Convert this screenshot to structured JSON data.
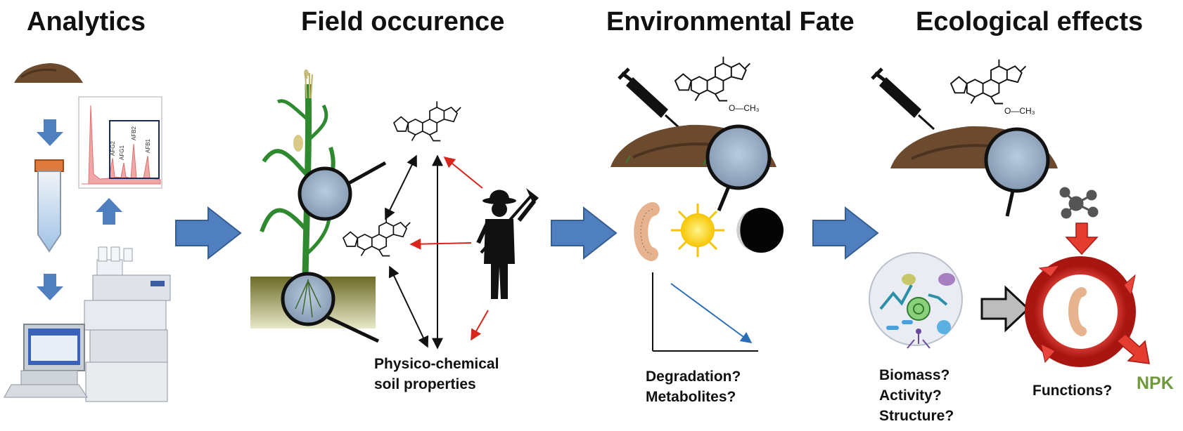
{
  "panels": {
    "analytics": {
      "title": "Analytics",
      "peaks": [
        "AFG2",
        "AFG1",
        "AFB2",
        "AFB1"
      ]
    },
    "field": {
      "title": "Field occurence",
      "label_line1": "Physico-chemical",
      "label_line2": "soil properties"
    },
    "fate": {
      "title": "Environmental Fate",
      "label_line1": "Degradation?",
      "label_line2": "Metabolites?",
      "methoxy": "O—CH₃"
    },
    "ecology": {
      "title": "Ecological effects",
      "label_line1": "Biomass?",
      "label_line2": "Activity?",
      "label_line3": "Structure?",
      "functions": "Functions?",
      "npk": "NPK",
      "methoxy": "O—CH₃"
    }
  },
  "colors": {
    "flow_arrow": "#4f7fbf",
    "red_arrow": "#d9261c",
    "soil": "#6b4a2e",
    "plant": "#2f8a2f"
  }
}
